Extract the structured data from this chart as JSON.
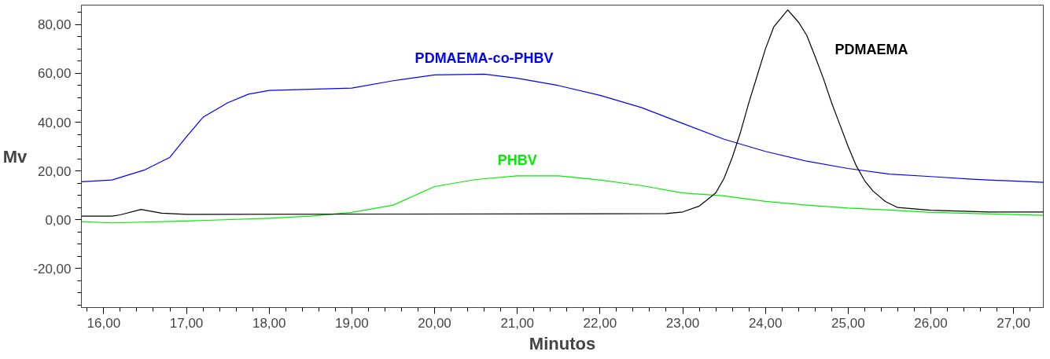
{
  "chart_data": {
    "type": "line",
    "xlabel": "Minutos",
    "ylabel": "Mv",
    "xlim": [
      15.73,
      27.36
    ],
    "ylim": [
      -36,
      88
    ],
    "xticks": [
      {
        "value": 16,
        "label": "16,00"
      },
      {
        "value": 17,
        "label": "17,00"
      },
      {
        "value": 18,
        "label": "18,00"
      },
      {
        "value": 19,
        "label": "19,00"
      },
      {
        "value": 20,
        "label": "20,00"
      },
      {
        "value": 21,
        "label": "21,00"
      },
      {
        "value": 22,
        "label": "22,00"
      },
      {
        "value": 23,
        "label": "23,00"
      },
      {
        "value": 24,
        "label": "24,00"
      },
      {
        "value": 25,
        "label": "25,00"
      },
      {
        "value": 26,
        "label": "26,00"
      },
      {
        "value": 27,
        "label": "27,00"
      }
    ],
    "yticks": [
      {
        "value": -20,
        "label": "-20,00"
      },
      {
        "value": 0,
        "label": "0,00"
      },
      {
        "value": 20,
        "label": "20,00"
      },
      {
        "value": 40,
        "label": "40,00"
      },
      {
        "value": 60,
        "label": "60,00"
      },
      {
        "value": 80,
        "label": "80,00"
      }
    ],
    "grid": false,
    "marker": "none",
    "line_style": "solid",
    "series": [
      {
        "name": "PDMAEMA-co-PHBV",
        "color": "#0000ff",
        "x": [
          15.73,
          16.1,
          16.5,
          16.8,
          17.0,
          17.2,
          17.5,
          17.75,
          18.0,
          19.0,
          19.5,
          20.0,
          20.6,
          21.0,
          21.5,
          22.0,
          22.5,
          23.0,
          23.5,
          24.0,
          24.5,
          25.0,
          25.5,
          26.0,
          26.5,
          27.36
        ],
        "values": [
          15.6,
          16.3,
          20.5,
          25.6,
          34,
          42,
          48,
          51.5,
          53,
          54,
          57,
          59.4,
          59.7,
          58,
          55,
          51,
          46,
          39.5,
          33,
          28,
          24,
          21,
          18.7,
          17.7,
          16.6,
          15.3
        ]
      },
      {
        "name": "PHBV",
        "color": "#00ee00",
        "x": [
          15.73,
          16.1,
          17.0,
          18.0,
          18.5,
          19.0,
          19.5,
          20.0,
          20.5,
          21.0,
          21.5,
          22.0,
          22.5,
          23.0,
          23.5,
          24.0,
          24.5,
          25.0,
          25.5,
          26.0,
          27.36
        ],
        "values": [
          -0.8,
          -1.3,
          -0.5,
          0.6,
          1.5,
          3,
          6,
          13.6,
          16.5,
          18,
          18,
          16.3,
          14,
          11,
          9.8,
          7.5,
          6,
          4.8,
          4,
          3,
          1.8
        ]
      },
      {
        "name": "PDMAEMA",
        "color": "#000000",
        "x": [
          15.73,
          16.1,
          16.2,
          16.45,
          16.7,
          17.0,
          22.8,
          23.0,
          23.2,
          23.4,
          23.5,
          23.6,
          23.7,
          23.8,
          23.9,
          24.0,
          24.1,
          24.27,
          24.4,
          24.5,
          24.6,
          24.7,
          24.8,
          24.9,
          25.0,
          25.1,
          25.2,
          25.3,
          25.45,
          25.6,
          26.0,
          26.7,
          27.36
        ],
        "values": [
          1.5,
          1.5,
          2,
          4.2,
          2.7,
          2.2,
          2.5,
          3.2,
          5.6,
          11,
          17,
          25.6,
          36,
          48,
          59,
          70,
          79,
          86,
          81,
          75.6,
          67,
          58,
          48,
          39,
          30,
          22,
          16,
          11.8,
          7.5,
          5,
          3.9,
          3.2,
          3.2
        ]
      }
    ]
  }
}
